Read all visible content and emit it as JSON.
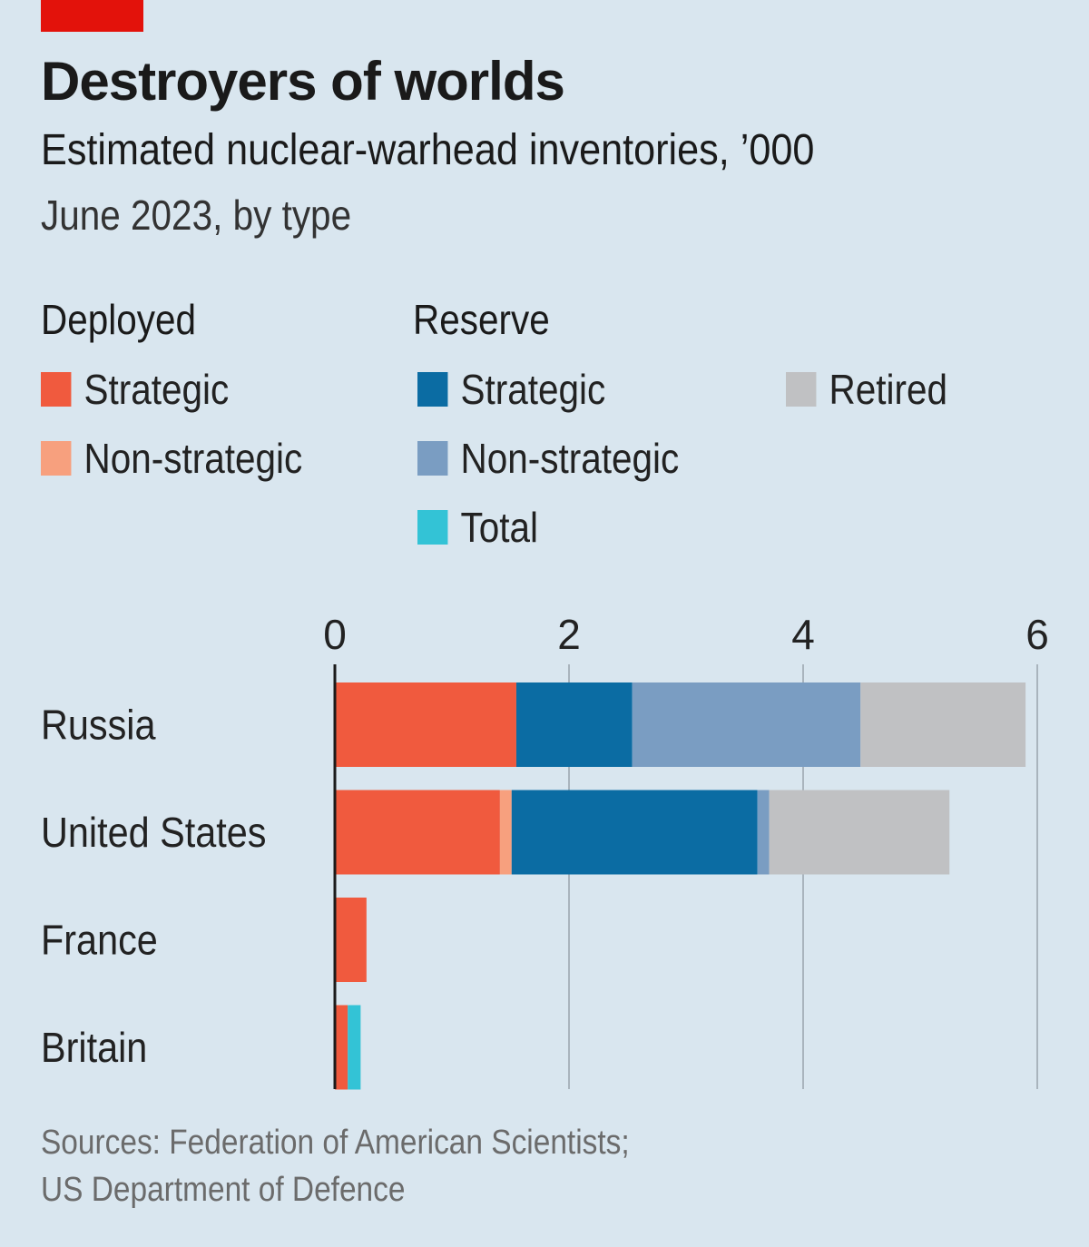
{
  "title": "Destroyers of worlds",
  "subtitle": "Estimated nuclear-warhead inventories, ’000",
  "date_note": "June 2023, by type",
  "legend": {
    "groups": [
      {
        "heading": "Deployed",
        "items": [
          {
            "label": "Strategic",
            "color": "#f05a3e"
          },
          {
            "label": "Non-strategic",
            "color": "#f7a07e"
          }
        ]
      },
      {
        "heading": "Reserve",
        "items": [
          {
            "label": "Strategic",
            "color": "#0b6ca3"
          },
          {
            "label": "Non-strategic",
            "color": "#7a9dc2"
          },
          {
            "label": "Total",
            "color": "#33c3d6"
          }
        ]
      },
      {
        "heading": "",
        "items": [
          {
            "label": "Retired",
            "color": "#c0c1c3"
          }
        ]
      }
    ]
  },
  "sources": [
    "Sources: Federation of American Scientists;",
    "US Department of Defence"
  ],
  "chart_data": {
    "type": "bar",
    "orientation": "horizontal-stacked",
    "categories": [
      "Russia",
      "United States",
      "France",
      "Britain"
    ],
    "xlim": [
      0,
      6
    ],
    "xticks": [
      "0",
      "2",
      "4",
      "6"
    ],
    "grid": true,
    "series": [
      {
        "name": "Deployed Strategic",
        "color": "#f05a3e",
        "values": [
          1.55,
          1.41,
          0.27,
          0.11
        ]
      },
      {
        "name": "Deployed Non-strategic",
        "color": "#f7a07e",
        "values": [
          0,
          0.1,
          0,
          0
        ]
      },
      {
        "name": "Reserve Strategic",
        "color": "#0b6ca3",
        "values": [
          0.99,
          2.1,
          0,
          0
        ]
      },
      {
        "name": "Reserve Non-strategic",
        "color": "#7a9dc2",
        "values": [
          1.95,
          0.1,
          0,
          0
        ]
      },
      {
        "name": "Reserve Total",
        "color": "#33c3d6",
        "values": [
          0,
          0,
          0,
          0.11
        ]
      },
      {
        "name": "Retired",
        "color": "#c0c1c3",
        "values": [
          1.41,
          1.54,
          0,
          0
        ]
      }
    ]
  }
}
